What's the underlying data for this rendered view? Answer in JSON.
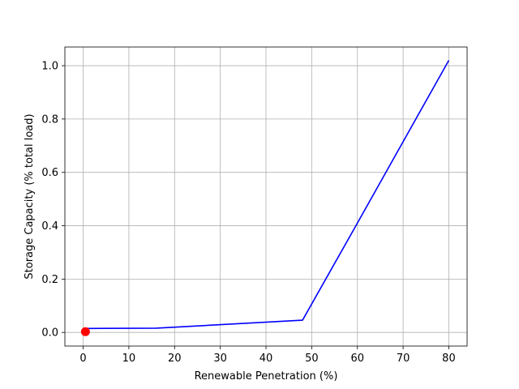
{
  "chart_data": {
    "type": "line",
    "title": "",
    "xlabel": "Renewable Penetration (%)",
    "ylabel": "Storage Capacity (% total load)",
    "xlim": [
      -4,
      84
    ],
    "ylim": [
      -0.051,
      1.07
    ],
    "grid": true,
    "x_ticks": [
      0,
      10,
      20,
      30,
      40,
      50,
      60,
      70,
      80
    ],
    "x_tick_labels": [
      "0",
      "10",
      "20",
      "30",
      "40",
      "50",
      "60",
      "70",
      "80"
    ],
    "y_ticks": [
      0.0,
      0.2,
      0.4,
      0.6,
      0.8,
      1.0
    ],
    "y_tick_labels": [
      "0.0",
      "0.2",
      "0.4",
      "0.6",
      "0.8",
      "1.0"
    ],
    "series": [
      {
        "type": "line",
        "color": "#0000ff",
        "x": [
          0.5,
          16,
          48,
          60,
          80
        ],
        "y": [
          0.015,
          0.016,
          0.046,
          0.41,
          1.02
        ]
      },
      {
        "type": "scatter",
        "color": "#ff0000",
        "x": [
          0.5
        ],
        "y": [
          0.003
        ]
      }
    ]
  }
}
